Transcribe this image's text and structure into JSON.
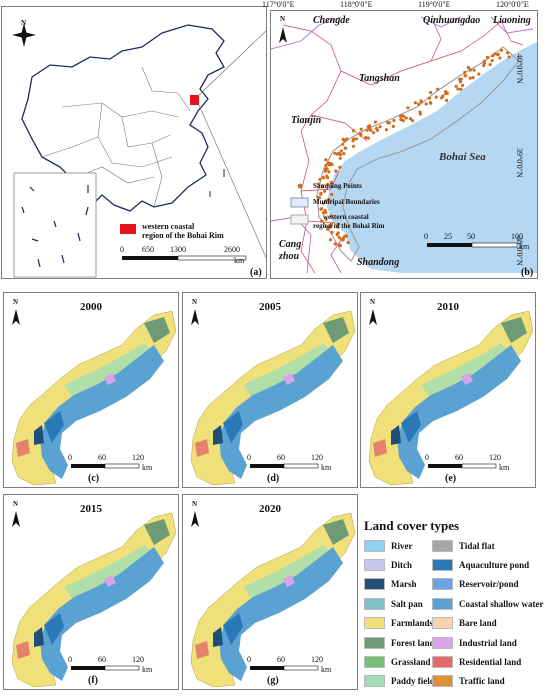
{
  "panel_a": {
    "label": "(a)",
    "legend_text_line1": "western coastal",
    "legend_text_line2": "region of the Bohai Rim",
    "scale_ticks": [
      "0",
      "650",
      "1300",
      "2600"
    ],
    "scale_unit": "km",
    "north": "N"
  },
  "panel_b": {
    "label": "(b)",
    "lon_ticks": [
      "117°0'0\"E",
      "118°0'0\"E",
      "119°0'0\"E",
      "120°0'0\"E"
    ],
    "lat_ticks": [
      "40°0'0\"N",
      "39°0'0\"N",
      "38°0'0\"N"
    ],
    "places": {
      "chengde": "Chengde",
      "qinhuangdao": "Qinhuangdao",
      "liaoning": "Liaoning",
      "tangshan": "Tangshan",
      "tianjin": "Tianjin",
      "bohai_sea": "Bohai Sea",
      "cang": "Cang",
      "zhou": "zhou",
      "shandong": "Shandong"
    },
    "key": {
      "sampling": "Sampling Points",
      "municipal": "Municipal Boundaries",
      "western_line1": "western coastal",
      "western_line2": "region of the Bohai Rim"
    },
    "scale_ticks": [
      "0",
      "25",
      "50",
      "100"
    ],
    "scale_unit": "km",
    "north": "N"
  },
  "maps": [
    {
      "year": "2000",
      "label": "(c)"
    },
    {
      "year": "2005",
      "label": "(d)"
    },
    {
      "year": "2010",
      "label": "(e)"
    },
    {
      "year": "2015",
      "label": "(f)"
    },
    {
      "year": "2020",
      "label": "(g)"
    }
  ],
  "map_scale": {
    "ticks": [
      "0",
      "60",
      "120"
    ],
    "unit": "km",
    "north": "N"
  },
  "legend": {
    "title": "Land cover types",
    "items": [
      {
        "label": "River",
        "color": "#8fd3f2"
      },
      {
        "label": "Ditch",
        "color": "#c9c6ee"
      },
      {
        "label": "Marsh",
        "color": "#1f4e79"
      },
      {
        "label": "Salt pan",
        "color": "#7fc3c8"
      },
      {
        "label": "Farmlands",
        "color": "#f0e07a"
      },
      {
        "label": "Forest land",
        "color": "#6e9a76"
      },
      {
        "label": "Grassland",
        "color": "#77c077"
      },
      {
        "label": "Paddy field",
        "color": "#a2deb3"
      },
      {
        "label": "Tidal flat",
        "color": "#a7a7a7"
      },
      {
        "label": "Aquaculture pond",
        "color": "#2a78b8"
      },
      {
        "label": "Reservoir/pond",
        "color": "#6aa6e6"
      },
      {
        "label": "Coastal shallow water",
        "color": "#5aa2d2"
      },
      {
        "label": "Bare land",
        "color": "#f7d3b2"
      },
      {
        "label": "Industrial land",
        "color": "#d9a4ea"
      },
      {
        "label": "Residential land",
        "color": "#e26a6a"
      },
      {
        "label": "Traffic land",
        "color": "#de9038"
      }
    ]
  }
}
